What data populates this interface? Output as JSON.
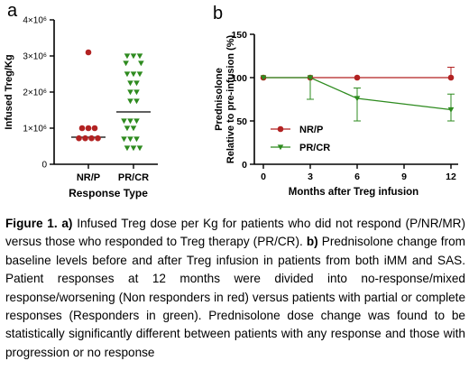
{
  "panel_a_letter": "a",
  "panel_b_letter": "b",
  "colors": {
    "red": "#b22222",
    "green": "#2e8b1f",
    "axis": "#000000",
    "ref": "#c0392b"
  },
  "chart_data": [
    {
      "type": "scatter",
      "ylabel": "Infused Treg/Kg",
      "xlabel": "Response Type",
      "categories": [
        "NR/P",
        "PR/CR"
      ],
      "ylim": [
        0,
        4000000
      ],
      "yticks": [
        {
          "value": 0,
          "label": "0"
        },
        {
          "value": 1000000,
          "label": "1×10⁶"
        },
        {
          "value": 2000000,
          "label": "2×10⁶"
        },
        {
          "value": 3000000,
          "label": "3×10⁶"
        },
        {
          "value": 4000000,
          "label": "4×10⁶"
        }
      ],
      "series": [
        {
          "category": "NR/P",
          "marker": "circle",
          "color": "#b22222",
          "median": 750000,
          "points": [
            {
              "x": 0,
              "y": 3100000
            },
            {
              "x": -1,
              "y": 1000000
            },
            {
              "x": 0,
              "y": 1000000
            },
            {
              "x": 1,
              "y": 1000000
            },
            {
              "x": -1.5,
              "y": 720000
            },
            {
              "x": -0.5,
              "y": 720000
            },
            {
              "x": 0.5,
              "y": 720000
            },
            {
              "x": 1.5,
              "y": 720000
            }
          ]
        },
        {
          "category": "PR/CR",
          "marker": "triangle-down",
          "color": "#2e8b1f",
          "median": 1450000,
          "points": [
            {
              "x": -1,
              "y": 3000000
            },
            {
              "x": 0,
              "y": 3000000
            },
            {
              "x": 1,
              "y": 3000000
            },
            {
              "x": -1.2,
              "y": 2800000
            },
            {
              "x": 1.2,
              "y": 2800000
            },
            {
              "x": -1,
              "y": 2500000
            },
            {
              "x": 0,
              "y": 2500000
            },
            {
              "x": 1,
              "y": 2500000
            },
            {
              "x": -0.5,
              "y": 2250000
            },
            {
              "x": 0.5,
              "y": 2250000
            },
            {
              "x": -0.5,
              "y": 2000000
            },
            {
              "x": 0.5,
              "y": 2000000
            },
            {
              "x": -0.5,
              "y": 1750000
            },
            {
              "x": 0.5,
              "y": 1750000
            },
            {
              "x": -1.5,
              "y": 1200000
            },
            {
              "x": -0.5,
              "y": 1200000
            },
            {
              "x": 0.5,
              "y": 1200000
            },
            {
              "x": -1,
              "y": 1000000
            },
            {
              "x": 0,
              "y": 1000000
            },
            {
              "x": -1.5,
              "y": 700000
            },
            {
              "x": -0.5,
              "y": 700000
            },
            {
              "x": 0.5,
              "y": 700000
            },
            {
              "x": -1,
              "y": 450000
            },
            {
              "x": 0,
              "y": 450000
            },
            {
              "x": 1,
              "y": 450000
            }
          ]
        }
      ]
    },
    {
      "type": "line",
      "ylabel_line1": "Prednisolone",
      "ylabel_line2": "Relative to pre-infusion (%)",
      "xlabel": "Months after Treg infusion",
      "x": [
        0,
        3,
        6,
        12
      ],
      "xticks": [
        0,
        3,
        6,
        9,
        12
      ],
      "ylim": [
        0,
        150
      ],
      "yticks": [
        0,
        50,
        100,
        150
      ],
      "reference_line": 100,
      "legend_position": "lower-left",
      "series": [
        {
          "name": "NR/P",
          "color": "#b22222",
          "marker": "circle",
          "values": [
            100,
            100,
            100,
            100
          ],
          "err_upper": [
            0,
            0,
            0,
            12
          ],
          "err_lower": [
            0,
            0,
            0,
            0
          ]
        },
        {
          "name": "PR/CR",
          "color": "#2e8b1f",
          "marker": "triangle-down",
          "values": [
            100,
            100,
            76,
            63
          ],
          "err_upper": [
            0,
            0,
            12,
            18
          ],
          "err_lower": [
            0,
            25,
            26,
            13
          ]
        }
      ]
    }
  ],
  "caption": {
    "figure_label": "Figure 1.",
    "a_label": "a)",
    "a_text": "Infused Treg dose per Kg for patients who did not respond (P/NR/MR) versus those who responded to Treg therapy (PR/CR).",
    "b_label": "b)",
    "b_text": "Prednisolone change from baseline levels before and after Treg infusion in patients from both iMM and SAS.  Patient responses at 12 months were divided into no-response/mixed response/worsening (Non responders in red) versus patients with partial or complete responses (Responders in green). Prednisolone dose change was found to be statistically significantly different between patients with any response and those with progression or no response"
  }
}
